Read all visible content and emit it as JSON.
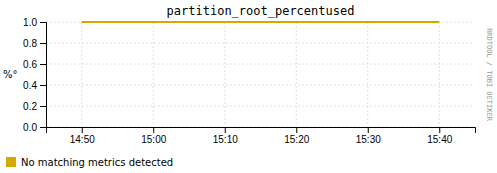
{
  "chart_data": {
    "type": "line",
    "title": "partition_root_percentused",
    "y_label": "%°",
    "categories": [
      "14:50",
      "15:00",
      "15:10",
      "15:20",
      "15:30",
      "15:40"
    ],
    "series": [
      {
        "name": "No matching metrics detected",
        "color": "#d4aa00",
        "values": [
          1.0,
          1.0,
          1.0,
          1.0,
          1.0,
          1.0
        ]
      }
    ],
    "ylim": [
      0.0,
      1.0
    ],
    "yticks": [
      {
        "value": 0.0,
        "label": "0.0"
      },
      0.2,
      0.4,
      0.6,
      0.8,
      {
        "value": 1.0,
        "label": "1.0"
      }
    ],
    "grid": true,
    "legend": "lower left",
    "annotations": [
      "RRDTOOL / TOBI OETIKER"
    ]
  }
}
